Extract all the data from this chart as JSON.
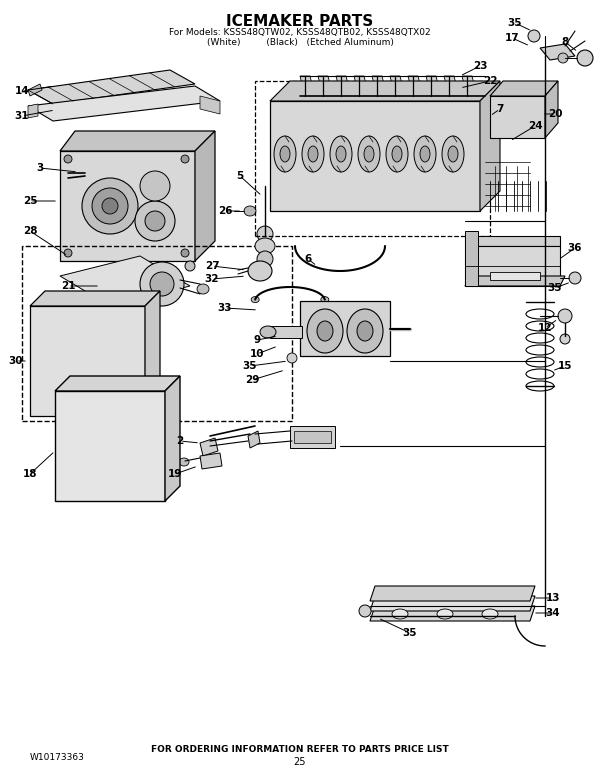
{
  "title": "ICEMAKER PARTS",
  "subtitle_line1": "For Models: KSSS48QTW02, KSSS48QTB02, KSSS48QTX02",
  "subtitle_line2": "(White)         (Black)   (Etched Aluminum)",
  "footer_left": "W10173363",
  "footer_center": "FOR ORDERING INFORMATION REFER TO PARTS PRICE LIST",
  "footer_page": "25",
  "bg_color": "#ffffff",
  "line_color": "#000000",
  "fig_w": 6.0,
  "fig_h": 7.76,
  "dpi": 100
}
